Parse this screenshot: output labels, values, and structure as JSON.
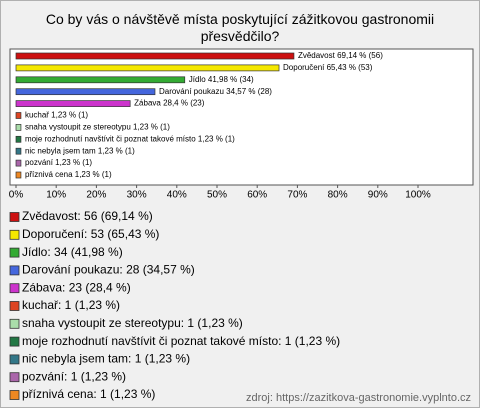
{
  "chart_data": {
    "type": "hbar",
    "title": "Co by vás o návštěvě místa poskytující zážitkovou gastronomii přesvědčilo?",
    "categories": [
      "Zvědavost",
      "Doporučení",
      "Jídlo",
      "Darování poukazu",
      "Zábava",
      "kuchař",
      "snaha vystoupit ze stereotypu",
      "moje rozhodnutí navštívit či poznat takové místo",
      "nic nebyla jsem tam",
      "pozvání",
      "příznivá cena"
    ],
    "values": [
      69.14,
      65.43,
      41.98,
      34.57,
      28.4,
      1.23,
      1.23,
      1.23,
      1.23,
      1.23,
      1.23
    ],
    "value_labels": [
      "Zvědavost 69,14 % (56)",
      "Doporučení 65,43 % (53)",
      "Jídlo 41,98 % (34)",
      "Darování poukazu 34,57 % (28)",
      "Zábava 28,4 % (23)",
      "kuchař 1,23 % (1)",
      "snaha vystoupit ze stereotypu 1,23 % (1)",
      "moje rozhodnutí navštívit či poznat takové místo 1,23 % (1)",
      "nic nebyla jsem tam 1,23 % (1)",
      "pozvání 1,23 % (1)",
      "příznivá cena 1,23 % (1)"
    ],
    "legend_labels": [
      "Zvědavost: 56 (69,14 %)",
      "Doporučení: 53 (65,43 %)",
      "Jídlo: 34 (41,98 %)",
      "Darování poukazu: 28 (34,57 %)",
      "Zábava: 23 (28,4 %)",
      "kuchař: 1 (1,23 %)",
      "snaha vystoupit ze stereotypu: 1 (1,23 %)",
      "moje rozhodnutí navštívit či poznat takové místo: 1 (1,23 %)",
      "nic nebyla jsem tam: 1 (1,23 %)",
      "pozvání: 1 (1,23 %)",
      "příznivá cena: 1 (1,23 %)"
    ],
    "colors": [
      "#cc1111",
      "#f5e800",
      "#33aa33",
      "#4466dd",
      "#cc33cc",
      "#dd4422",
      "#aaddaa",
      "#227744",
      "#337788",
      "#aa66aa",
      "#ee8822"
    ],
    "xlim": [
      0,
      100
    ],
    "xticks": [
      {
        "value": 0,
        "label": "0%"
      },
      {
        "value": 10,
        "label": "10%"
      },
      {
        "value": 20,
        "label": "20%"
      },
      {
        "value": 30,
        "label": "30%"
      },
      {
        "value": 40,
        "label": "40%"
      },
      {
        "value": 50,
        "label": "50%"
      },
      {
        "value": 60,
        "label": "60%"
      },
      {
        "value": 70,
        "label": "70%"
      },
      {
        "value": 80,
        "label": "80%"
      },
      {
        "value": 90,
        "label": "90%"
      },
      {
        "value": 100,
        "label": "100%"
      }
    ],
    "source": "zdroj: https://zazitkova-gastronomie.vyplnto.cz"
  }
}
